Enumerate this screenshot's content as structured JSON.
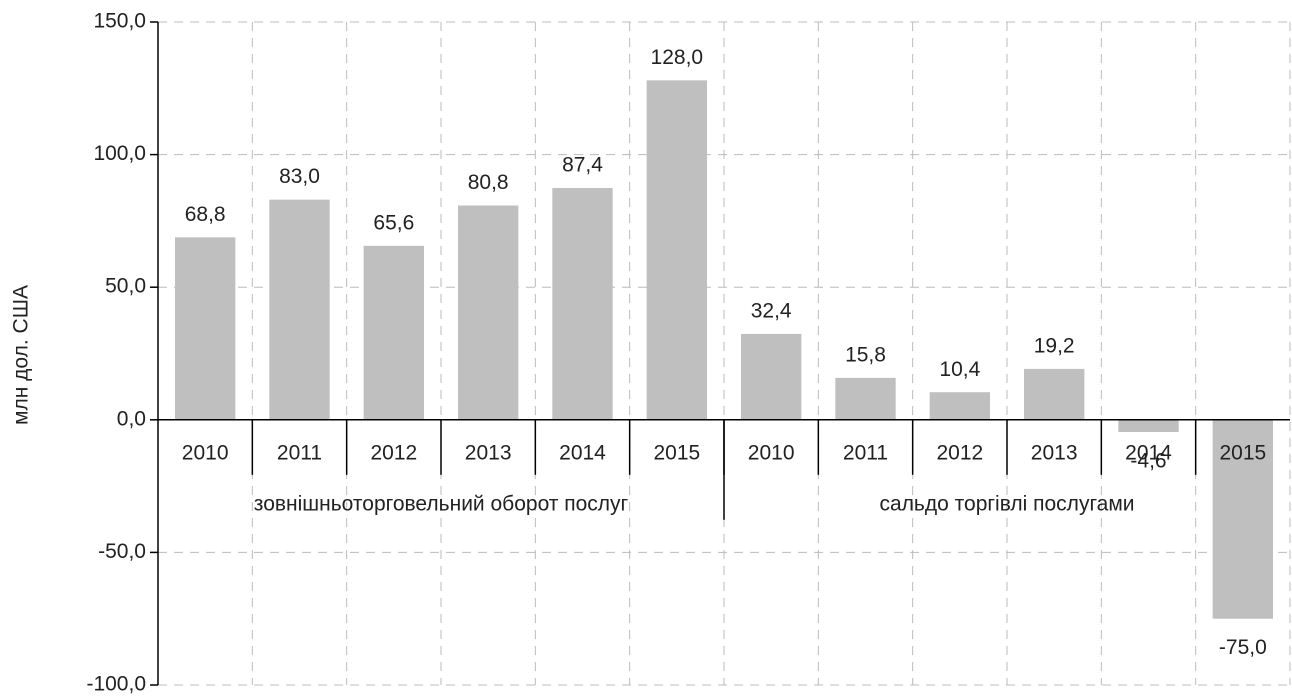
{
  "chart_data": {
    "type": "bar",
    "y_label": "млн дол. США",
    "categories": [
      "2010",
      "2011",
      "2012",
      "2013",
      "2014",
      "2015",
      "2010",
      "2011",
      "2012",
      "2013",
      "2014",
      "2015"
    ],
    "groups": [
      "зовнішньоторговельний оборот послуг",
      "сальдо торгівлі послугами"
    ],
    "values": [
      68.8,
      83.0,
      65.6,
      80.8,
      87.4,
      128.0,
      32.4,
      15.8,
      10.4,
      19.2,
      -4.6,
      -75.0
    ],
    "value_labels": [
      "68,8",
      "83,0",
      "65,6",
      "80,8",
      "87,4",
      "128,0",
      "32,4",
      "15,8",
      "10,4",
      "19,2",
      "-4,6",
      "-75,0"
    ],
    "color": "#bfbfc0",
    "ylim": [
      -100,
      150
    ],
    "yticks": [
      {
        "value": -100,
        "label": "-100,0"
      },
      {
        "value": -50,
        "label": "-50,0"
      },
      {
        "value": 0,
        "label": "0,0"
      },
      {
        "value": 50,
        "label": "50,0"
      },
      {
        "value": 100,
        "label": "100,0"
      },
      {
        "value": 150,
        "label": "150,0"
      }
    ],
    "grid": true
  }
}
